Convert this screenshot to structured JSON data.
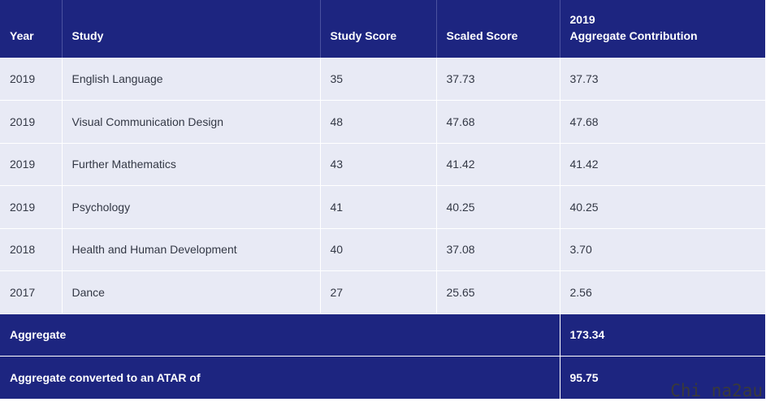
{
  "table": {
    "headers": {
      "year": "Year",
      "study": "Study",
      "study_score": "Study Score",
      "scaled_score": "Scaled Score",
      "aggregate_line1": "2019",
      "aggregate_line2": "Aggregate Contribution"
    },
    "rows": [
      {
        "year": "2019",
        "study": "English Language",
        "study_score": "35",
        "scaled_score": "37.73",
        "contribution": "37.73"
      },
      {
        "year": "2019",
        "study": "Visual Communication Design",
        "study_score": "48",
        "scaled_score": "47.68",
        "contribution": "47.68"
      },
      {
        "year": "2019",
        "study": "Further Mathematics",
        "study_score": "43",
        "scaled_score": "41.42",
        "contribution": "41.42"
      },
      {
        "year": "2019",
        "study": "Psychology",
        "study_score": "41",
        "scaled_score": "40.25",
        "contribution": "40.25"
      },
      {
        "year": "2018",
        "study": "Health and Human Development",
        "study_score": "40",
        "scaled_score": "37.08",
        "contribution": "3.70"
      },
      {
        "year": "2017",
        "study": "Dance",
        "study_score": "27",
        "scaled_score": "25.65",
        "contribution": "2.56"
      }
    ],
    "aggregate": {
      "label": "Aggregate",
      "value": "173.34"
    },
    "atar": {
      "label": "Aggregate converted to an ATAR of",
      "value": "95.75"
    }
  },
  "watermark": "Chi na2au",
  "colors": {
    "header_bg": "#1d2580",
    "row_bg": "#e8eaf5",
    "text": "#333845"
  }
}
